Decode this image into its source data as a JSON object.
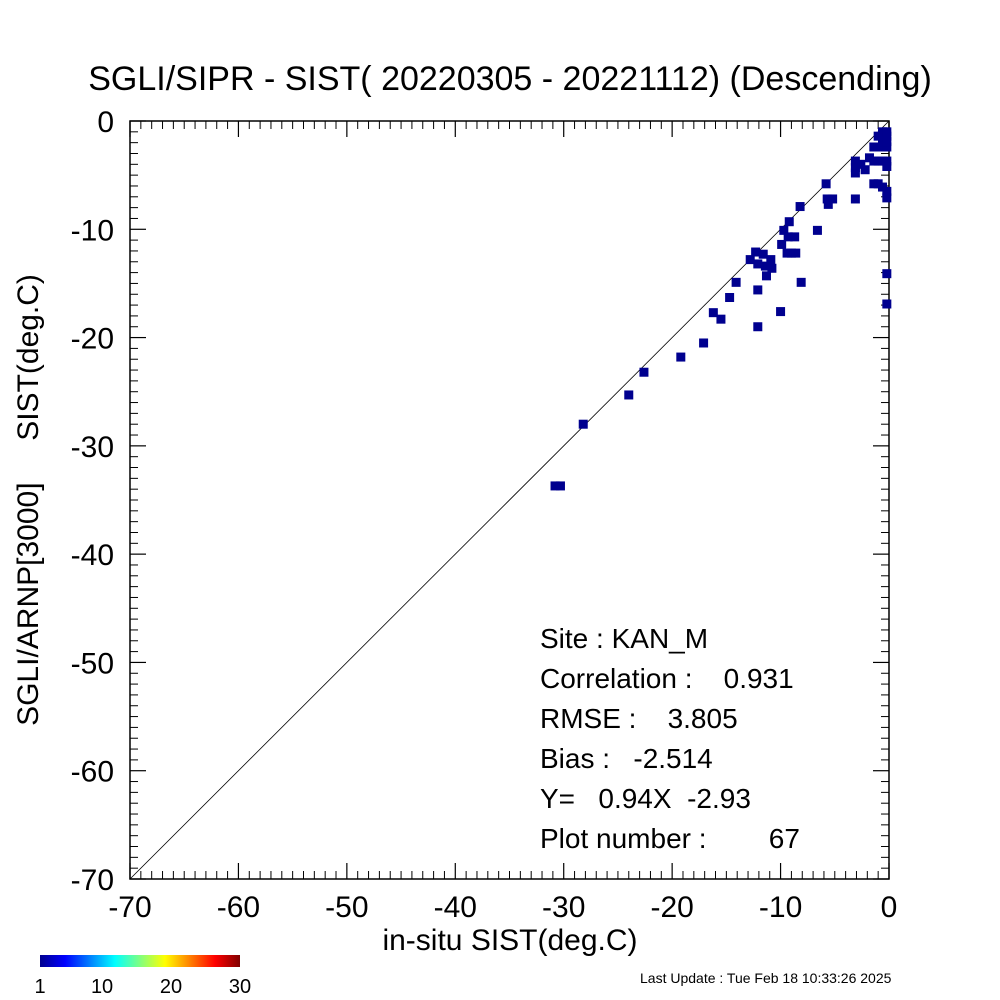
{
  "chart_data": {
    "type": "scatter",
    "title": "SGLI/SIPR - SIST( 20220305 - 20221112) (Descending)",
    "xlabel": "in-situ SIST(deg.C)",
    "ylabel": "SGLI/ARNP[3000]     SIST(deg.C)",
    "xlim": [
      -70,
      0
    ],
    "ylim": [
      -70,
      0
    ],
    "xticks": [
      "-70",
      "-60",
      "-50",
      "-40",
      "-30",
      "-20",
      "-10",
      "0"
    ],
    "yticks": [
      "-70",
      "-60",
      "-50",
      "-40",
      "-30",
      "-20",
      "-10",
      "0"
    ],
    "reference_line": "1:1",
    "marker_color": "#00008f",
    "points": [
      {
        "x": -30.8,
        "y": -33.7
      },
      {
        "x": -30.3,
        "y": -33.7
      },
      {
        "x": -28.2,
        "y": -28.0
      },
      {
        "x": -24.0,
        "y": -25.3
      },
      {
        "x": -22.6,
        "y": -23.2
      },
      {
        "x": -19.2,
        "y": -21.8
      },
      {
        "x": -17.1,
        "y": -20.5
      },
      {
        "x": -16.2,
        "y": -17.7
      },
      {
        "x": -15.5,
        "y": -18.3
      },
      {
        "x": -14.7,
        "y": -16.3
      },
      {
        "x": -14.1,
        "y": -14.9
      },
      {
        "x": -12.8,
        "y": -12.8
      },
      {
        "x": -12.3,
        "y": -12.1
      },
      {
        "x": -12.1,
        "y": -13.2
      },
      {
        "x": -11.6,
        "y": -12.3
      },
      {
        "x": -11.4,
        "y": -13.4
      },
      {
        "x": -10.9,
        "y": -12.8
      },
      {
        "x": -10.8,
        "y": -13.6
      },
      {
        "x": -11.3,
        "y": -14.3
      },
      {
        "x": -12.1,
        "y": -15.6
      },
      {
        "x": -12.1,
        "y": -19.0
      },
      {
        "x": -10.0,
        "y": -17.6
      },
      {
        "x": -9.9,
        "y": -11.4
      },
      {
        "x": -9.7,
        "y": -10.1
      },
      {
        "x": -9.3,
        "y": -10.7
      },
      {
        "x": -9.0,
        "y": -12.2
      },
      {
        "x": -9.4,
        "y": -12.2
      },
      {
        "x": -8.7,
        "y": -10.7
      },
      {
        "x": -8.6,
        "y": -12.2
      },
      {
        "x": -8.2,
        "y": -7.9
      },
      {
        "x": -8.1,
        "y": -14.9
      },
      {
        "x": -9.2,
        "y": -9.3
      },
      {
        "x": -6.6,
        "y": -10.1
      },
      {
        "x": -5.8,
        "y": -5.8
      },
      {
        "x": -5.7,
        "y": -7.2
      },
      {
        "x": -5.2,
        "y": -7.2
      },
      {
        "x": -5.6,
        "y": -7.7
      },
      {
        "x": -3.1,
        "y": -3.7
      },
      {
        "x": -3.1,
        "y": -4.3
      },
      {
        "x": -3.1,
        "y": -4.8
      },
      {
        "x": -3.1,
        "y": -7.2
      },
      {
        "x": -2.6,
        "y": -4.0
      },
      {
        "x": -2.2,
        "y": -4.5
      },
      {
        "x": -1.8,
        "y": -3.4
      },
      {
        "x": -1.4,
        "y": -3.7
      },
      {
        "x": -1.4,
        "y": -5.8
      },
      {
        "x": -1.0,
        "y": -5.8
      },
      {
        "x": -1.0,
        "y": -3.7
      },
      {
        "x": -0.6,
        "y": -3.7
      },
      {
        "x": -1.4,
        "y": -2.4
      },
      {
        "x": -1.0,
        "y": -2.4
      },
      {
        "x": -0.6,
        "y": -2.4
      },
      {
        "x": -0.2,
        "y": -2.4
      },
      {
        "x": -1.0,
        "y": -1.4
      },
      {
        "x": -0.6,
        "y": -1.4
      },
      {
        "x": -0.2,
        "y": -1.4
      },
      {
        "x": -0.6,
        "y": -1.9
      },
      {
        "x": -0.2,
        "y": -1.9
      },
      {
        "x": -0.6,
        "y": -1.0
      },
      {
        "x": -0.2,
        "y": -1.0
      },
      {
        "x": -0.2,
        "y": -3.7
      },
      {
        "x": -0.2,
        "y": -4.2
      },
      {
        "x": -0.2,
        "y": -6.5
      },
      {
        "x": -0.2,
        "y": -7.1
      },
      {
        "x": -0.2,
        "y": -14.1
      },
      {
        "x": -0.2,
        "y": -16.9
      },
      {
        "x": -0.6,
        "y": -6.1
      }
    ],
    "stats": [
      "Site : KAN_M",
      "Correlation :    0.931",
      "RMSE :    3.805",
      "Bias :   -2.514",
      "Y=   0.94X  -2.93",
      "Plot number :        67"
    ],
    "colorbar": {
      "range": [
        1,
        30
      ],
      "tick_labels": [
        "1",
        "10",
        "20",
        "30"
      ],
      "colors": [
        "#00008f",
        "#0000ff",
        "#0080ff",
        "#00ffff",
        "#80ff80",
        "#ffff00",
        "#ff8000",
        "#ff0000",
        "#800000"
      ]
    }
  },
  "footer": "Last Update : Tue Feb 18 10:33:26 2025"
}
